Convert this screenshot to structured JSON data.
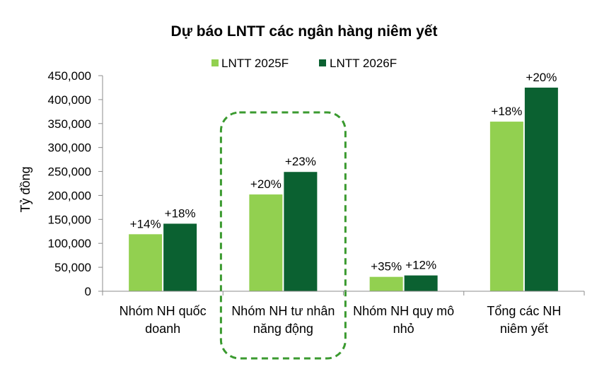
{
  "chart_data": {
    "type": "bar",
    "title": "Dự báo LNTT các ngân hàng niêm yết",
    "ylabel": "Tỷ đồng",
    "xlabel": "",
    "ylim": [
      0,
      450000
    ],
    "yticks": [
      0,
      50000,
      100000,
      150000,
      200000,
      250000,
      300000,
      350000,
      400000,
      450000
    ],
    "ytick_labels": [
      "0",
      "50,000",
      "100,000",
      "150,000",
      "200,000",
      "250,000",
      "300,000",
      "350,000",
      "400,000",
      "450,000"
    ],
    "grid": false,
    "legend_position": "top",
    "categories": [
      [
        "Nhóm NH quốc",
        "doanh"
      ],
      [
        "Nhóm NH tư nhân",
        "năng động"
      ],
      [
        "Nhóm NH quy mô",
        "nhỏ"
      ],
      [
        "Tổng các NH",
        "niêm yết"
      ]
    ],
    "series": [
      {
        "name": "LNTT 2025F",
        "color": "#92d050",
        "values": [
          119000,
          202000,
          30000,
          354000
        ],
        "labels": [
          "+14%",
          "+20%",
          "+35%",
          "+18%"
        ]
      },
      {
        "name": "LNTT 2026F",
        "color": "#0b6131",
        "values": [
          141000,
          249000,
          33000,
          425000
        ],
        "labels": [
          "+18%",
          "+23%",
          "+12%",
          "+20%"
        ]
      }
    ],
    "highlighted_category_index": 1,
    "highlight_color": "#3a9a2f"
  }
}
